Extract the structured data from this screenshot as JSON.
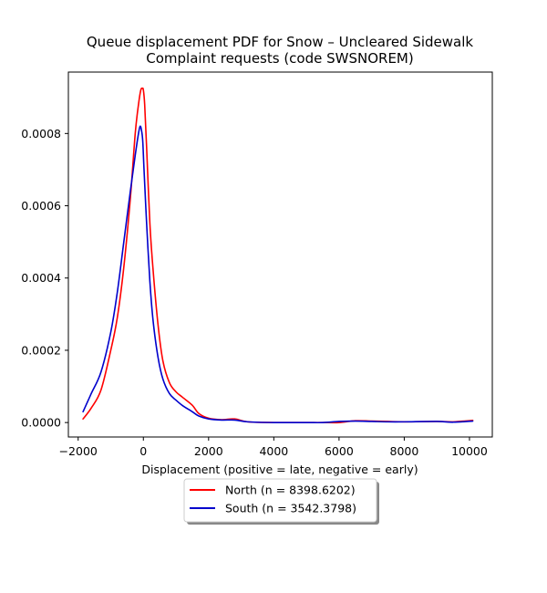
{
  "chart_data": {
    "type": "line",
    "title_line1": "Queue displacement PDF for Snow – Uncleared Sidewalk",
    "title_line2": "Complaint  requests (code SWSNOREM)",
    "xlabel": "Displacement (positive = late, negative = early)",
    "ylabel": "",
    "xlim": [
      -2300,
      10700
    ],
    "ylim": [
      -4e-05,
      0.00097
    ],
    "xticks": [
      -2000,
      0,
      2000,
      4000,
      6000,
      8000,
      10000
    ],
    "xtick_labels": [
      "−2000",
      "0",
      "2000",
      "4000",
      "6000",
      "8000",
      "10000"
    ],
    "yticks": [
      0.0,
      0.0002,
      0.0004,
      0.0006,
      0.0008
    ],
    "ytick_labels": [
      "0.0000",
      "0.0002",
      "0.0004",
      "0.0006",
      "0.0008"
    ],
    "grid": false,
    "legend_placement": "below",
    "series": [
      {
        "name": "North (n = 8398.6202)",
        "color": "#ff0000",
        "x": [
          -1850,
          -1600,
          -1300,
          -1000,
          -800,
          -600,
          -400,
          -250,
          -150,
          -80,
          -30,
          0,
          40,
          100,
          200,
          300,
          450,
          600,
          800,
          1000,
          1200,
          1500,
          1700,
          2000,
          2400,
          2800,
          3200,
          4000,
          5000,
          5500,
          6000,
          6500,
          7000,
          7500,
          8000,
          9000,
          9500,
          10100
        ],
        "y": [
          1e-05,
          4e-05,
          9e-05,
          0.0002,
          0.00029,
          0.00043,
          0.00062,
          0.0008,
          0.00088,
          0.00092,
          0.000925,
          0.00092,
          0.00088,
          0.00076,
          0.00055,
          0.00042,
          0.00027,
          0.00017,
          0.00011,
          8.5e-05,
          7e-05,
          4.8e-05,
          2.5e-05,
          1.2e-05,
          8e-06,
          1e-05,
          2e-06,
          0.0,
          0.0,
          0.0,
          0.0,
          5e-06,
          4e-06,
          3e-06,
          2e-06,
          3e-06,
          2e-06,
          6e-06
        ]
      },
      {
        "name": "South (n = 3542.3798)",
        "color": "#0000cc",
        "x": [
          -1850,
          -1600,
          -1300,
          -1000,
          -800,
          -600,
          -400,
          -250,
          -150,
          -100,
          -60,
          -20,
          20,
          100,
          200,
          300,
          450,
          600,
          800,
          1000,
          1200,
          1500,
          1700,
          2000,
          2400,
          2800,
          3200,
          4000,
          5000,
          5500,
          6000,
          6500,
          7000,
          7500,
          8000,
          9000,
          9500,
          10100
        ],
        "y": [
          3e-05,
          8e-05,
          0.00014,
          0.00025,
          0.00036,
          0.0005,
          0.00064,
          0.00074,
          0.0008,
          0.00082,
          0.00081,
          0.00078,
          0.0007,
          0.00055,
          0.00039,
          0.00028,
          0.00018,
          0.00012,
          8e-05,
          6.2e-05,
          4.7e-05,
          3e-05,
          1.8e-05,
          1e-05,
          7e-06,
          7e-06,
          2e-06,
          0.0,
          0.0,
          0.0,
          3e-06,
          4e-06,
          3e-06,
          2e-06,
          2e-06,
          3e-06,
          1e-06,
          4e-06
        ]
      }
    ]
  }
}
